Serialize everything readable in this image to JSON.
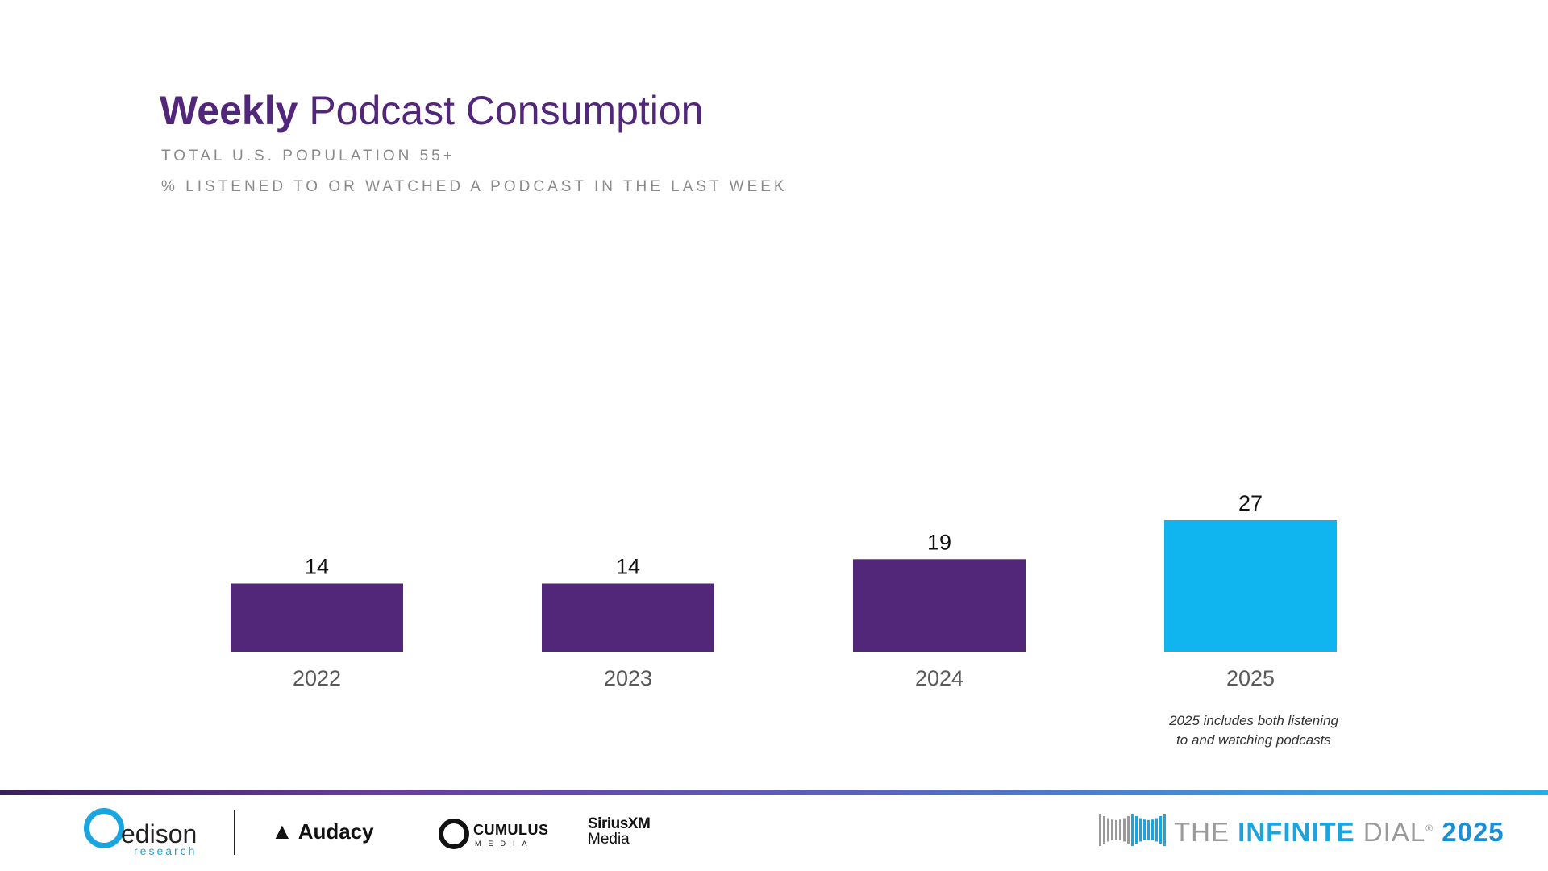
{
  "title": {
    "bold": "Weekly",
    "rest": "Podcast Consumption"
  },
  "subtitle_1": "TOTAL U.S. POPULATION 55+",
  "subtitle_2": "% LISTENED TO OR WATCHED A PODCAST IN THE LAST WEEK",
  "chart_data": {
    "type": "bar",
    "categories": [
      "2022",
      "2023",
      "2024",
      "2025"
    ],
    "values": [
      14,
      14,
      19,
      27
    ],
    "bar_colors": [
      "#52277a",
      "#52277a",
      "#52277a",
      "#10b4ef"
    ],
    "ylim": [
      0,
      27
    ],
    "grid": false,
    "annotation": [
      "2025 includes both listening",
      "to and watching podcasts"
    ]
  },
  "colors": {
    "accent_purple": "#52277a",
    "accent_blue": "#10b4ef",
    "subtitle_gray": "#8a8a8a"
  },
  "footer": {
    "edison": {
      "icon": "edison-e-logo-icon",
      "word": "edison",
      "sub": "research"
    },
    "audacy": "Audacy",
    "cumulus": {
      "word": "CUMULUS",
      "media": "MEDIA"
    },
    "siriusxm": {
      "line1": "SiriusXM",
      "line2": "Media"
    },
    "infinite_dial": {
      "pre": "THE ",
      "bold": "INFINITE",
      "post": " DIAL",
      "mark": "®",
      "year": "2025"
    }
  }
}
